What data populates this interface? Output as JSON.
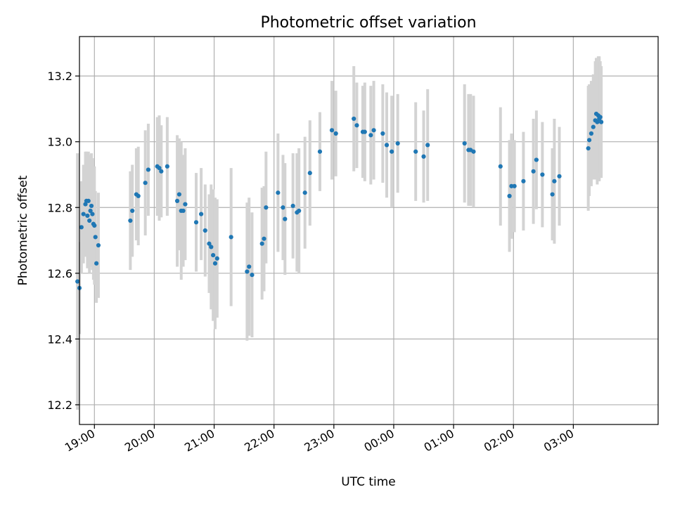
{
  "chart_data": {
    "type": "scatter",
    "title": "Photometric offset variation",
    "xlabel": "UTC time",
    "ylabel": "Photometric offset",
    "grid": true,
    "x_ticks": [
      "19:00",
      "20:00",
      "21:00",
      "22:00",
      "23:00",
      "00:00",
      "01:00",
      "02:00",
      "03:00"
    ],
    "y_ticks": [
      "12.2",
      "12.4",
      "12.6",
      "12.8",
      "13.0",
      "13.2"
    ],
    "xlim": [
      "18:45",
      "28:25"
    ],
    "ylim": [
      12.14,
      13.32
    ],
    "point_color": "#1f77b4",
    "errorbar_color": "#d3d3d3",
    "series": [
      {
        "kind": "errorbar",
        "x": [
          "18:43",
          "18:45",
          "18:47",
          "18:49",
          "18:51",
          "18:52",
          "18:53",
          "18:54",
          "18:55",
          "18:56",
          "18:57",
          "18:58",
          "18:59",
          "19:00",
          "19:01",
          "19:02",
          "19:04",
          "19:36",
          "19:38",
          "19:42",
          "19:44",
          "19:51",
          "19:54",
          "20:03",
          "20:05",
          "20:07",
          "20:13",
          "20:23",
          "20:25",
          "20:27",
          "20:29",
          "20:31",
          "20:42",
          "20:47",
          "20:51",
          "20:55",
          "20:57",
          "20:59",
          "21:01",
          "21:03",
          "21:17",
          "21:33",
          "21:35",
          "21:38",
          "21:48",
          "21:50",
          "21:52",
          "22:04",
          "22:09",
          "22:11",
          "22:19",
          "22:23",
          "22:25",
          "22:31",
          "22:36",
          "22:46",
          "22:58",
          "23:02",
          "23:20",
          "23:23",
          "23:29",
          "23:31",
          "23:37",
          "23:40",
          "23:49",
          "23:53",
          "23:58",
          "24:04",
          "24:22",
          "24:30",
          "24:34",
          "25:11",
          "25:15",
          "25:17",
          "25:20",
          "25:47",
          "25:56",
          "25:58",
          "26:01",
          "26:10",
          "26:20",
          "26:23",
          "26:29",
          "26:39",
          "26:41",
          "26:46",
          "27:15",
          "27:16",
          "27:18",
          "27:20",
          "27:22",
          "27:23",
          "27:24",
          "27:25",
          "27:26",
          "27:27",
          "27:28"
        ],
        "y": [
          12.575,
          12.555,
          12.74,
          12.78,
          12.81,
          12.82,
          12.775,
          12.82,
          12.76,
          12.79,
          12.805,
          12.78,
          12.75,
          12.745,
          12.71,
          12.63,
          12.685,
          12.76,
          12.79,
          12.84,
          12.835,
          12.875,
          12.915,
          12.925,
          12.92,
          12.91,
          12.925,
          12.82,
          12.84,
          12.79,
          12.79,
          12.81,
          12.755,
          12.78,
          12.73,
          12.69,
          12.68,
          12.655,
          12.63,
          12.645,
          12.71,
          12.605,
          12.62,
          12.595,
          12.69,
          12.705,
          12.8,
          12.845,
          12.8,
          12.765,
          12.805,
          12.785,
          12.79,
          12.845,
          12.905,
          12.97,
          13.035,
          13.025,
          13.07,
          13.05,
          13.03,
          13.03,
          13.02,
          13.035,
          13.025,
          12.99,
          12.97,
          12.995,
          12.97,
          12.955,
          12.99,
          12.995,
          12.975,
          12.975,
          12.97,
          12.925,
          12.835,
          12.865,
          12.865,
          12.88,
          12.91,
          12.945,
          12.9,
          12.84,
          12.88,
          12.895,
          12.98,
          13.005,
          13.025,
          13.045,
          13.065,
          13.085,
          13.06,
          13.08,
          13.07,
          13.075,
          13.06
        ],
        "yerr": [
          0.39,
          0.14,
          0.14,
          0.15,
          0.16,
          0.15,
          0.16,
          0.15,
          0.16,
          0.17,
          0.16,
          0.17,
          0.17,
          0.18,
          0.14,
          0.12,
          0.16,
          0.15,
          0.14,
          0.14,
          0.15,
          0.16,
          0.14,
          0.15,
          0.16,
          0.14,
          0.15,
          0.2,
          0.17,
          0.21,
          0.17,
          0.17,
          0.15,
          0.14,
          0.14,
          0.15,
          0.19,
          0.2,
          0.2,
          0.18,
          0.21,
          0.21,
          0.21,
          0.19,
          0.17,
          0.16,
          0.17,
          0.18,
          0.16,
          0.17,
          0.16,
          0.18,
          0.19,
          0.17,
          0.16,
          0.12,
          0.15,
          0.13,
          0.16,
          0.13,
          0.14,
          0.15,
          0.15,
          0.15,
          0.15,
          0.16,
          0.17,
          0.15,
          0.15,
          0.14,
          0.17,
          0.18,
          0.17,
          0.17,
          0.17,
          0.18,
          0.17,
          0.16,
          0.14,
          0.15,
          0.16,
          0.15,
          0.16,
          0.14,
          0.19,
          0.15,
          0.19,
          0.17,
          0.16,
          0.16,
          0.18,
          0.17,
          0.19,
          0.18,
          0.19,
          0.17,
          0.17
        ]
      }
    ]
  }
}
